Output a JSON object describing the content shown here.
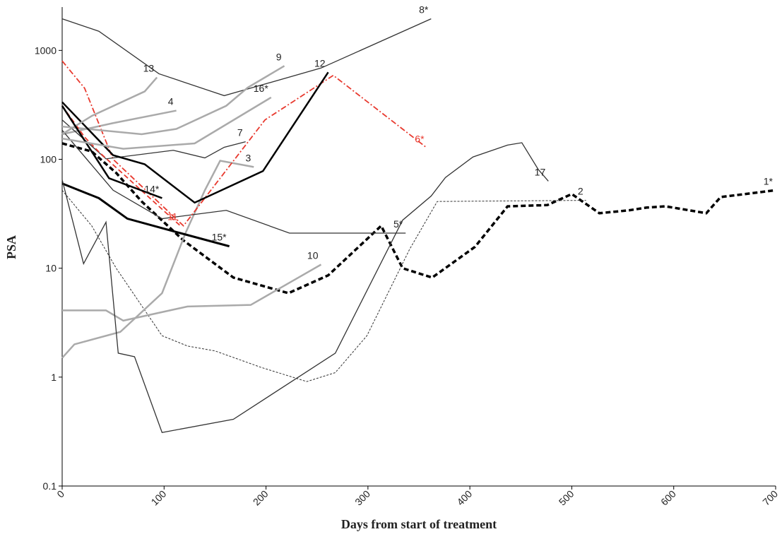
{
  "chart_data": {
    "type": "line",
    "xlabel": "Days from start of treatment",
    "ylabel": "PSA",
    "log_y": true,
    "xlim": [
      0,
      700
    ],
    "xticks": [
      0,
      100,
      200,
      300,
      400,
      500,
      600,
      700
    ],
    "ylim": [
      0.1,
      2500
    ],
    "yticks": [
      0.1,
      1,
      10,
      100,
      1000
    ],
    "series": [
      {
        "name": "1*",
        "color": "#000000",
        "linestyle": "dashed",
        "linewidth": 3.5,
        "x": [
          0,
          29,
          53,
          78,
          119,
          168,
          222,
          261,
          313,
          334,
          363,
          405,
          437,
          476,
          500,
          527,
          556,
          573,
          592,
          632,
          646,
          700
        ],
        "values": [
          140,
          118,
          75,
          41,
          18,
          8.2,
          5.9,
          8.6,
          24.5,
          10,
          8.2,
          15.7,
          37,
          38,
          48,
          32,
          34,
          36,
          37,
          32,
          45,
          52
        ]
      },
      {
        "name": "2",
        "color": "#333333",
        "linestyle": "dotted",
        "linewidth": 1,
        "x": [
          0,
          29,
          53,
          98,
          123,
          150,
          195,
          240,
          268,
          299,
          341,
          368,
          514
        ],
        "values": [
          52,
          24.5,
          10,
          2.4,
          1.93,
          1.74,
          1.23,
          0.91,
          1.1,
          2.4,
          15,
          41,
          42
        ]
      },
      {
        "name": "3",
        "color": "#aaaaaa",
        "linestyle": "solid",
        "linewidth": 2.5,
        "x": [
          0,
          12,
          57,
          98,
          121,
          140,
          155,
          188
        ],
        "values": [
          1.5,
          2,
          2.6,
          5.9,
          21,
          52,
          97,
          85
        ]
      },
      {
        "name": "4",
        "color": "#aaaaaa",
        "linestyle": "solid",
        "linewidth": 2.5,
        "x": [
          0,
          50,
          112
        ],
        "values": [
          170,
          215,
          280
        ]
      },
      {
        "name": "5*",
        "color": "#333333",
        "linestyle": "solid",
        "linewidth": 1.3,
        "x": [
          0,
          50,
          98,
          161,
          223,
          337
        ],
        "values": [
          185,
          52,
          28.5,
          34,
          21,
          21
        ]
      },
      {
        "name": "6*",
        "color": "#e8392e",
        "linestyle": "dashdot",
        "linewidth": 1.8,
        "x": [
          0,
          22,
          50,
          119,
          199,
          266,
          358
        ],
        "values": [
          800,
          450,
          100,
          24.5,
          230,
          590,
          127
        ]
      },
      {
        "name": "7",
        "color": "#333333",
        "linestyle": "solid",
        "linewidth": 1.3,
        "x": [
          0,
          43,
          109,
          140,
          159,
          180
        ],
        "values": [
          230,
          101,
          121,
          103,
          129,
          145
        ]
      },
      {
        "name": "8*",
        "color": "#333333",
        "linestyle": "solid",
        "linewidth": 1.3,
        "x": [
          0,
          36,
          95,
          159,
          254,
          362
        ],
        "values": [
          1950,
          1500,
          610,
          384,
          689,
          1950
        ]
      },
      {
        "name": "9",
        "color": "#aaaaaa",
        "linestyle": "solid",
        "linewidth": 2.5,
        "x": [
          0,
          78,
          112,
          161,
          182,
          218
        ],
        "values": [
          200,
          170,
          190,
          310,
          455,
          720
        ]
      },
      {
        "name": "10",
        "color": "#aaaaaa",
        "linestyle": "solid",
        "linewidth": 2.5,
        "x": [
          0,
          43,
          60,
          123,
          185,
          254
        ],
        "values": [
          4.1,
          4.1,
          3.3,
          4.45,
          4.6,
          10.8
        ]
      },
      {
        "name": "11",
        "color": "#e8392e",
        "linestyle": "dashed",
        "linewidth": 1.8,
        "x": [
          0,
          22,
          36,
          116
        ],
        "values": [
          310,
          160,
          117,
          24.5
        ]
      },
      {
        "name": "12",
        "color": "#000000",
        "linestyle": "solid",
        "linewidth": 2.5,
        "x": [
          0,
          50,
          81,
          130,
          197,
          261
        ],
        "values": [
          335,
          109,
          90,
          40,
          78,
          630
        ]
      },
      {
        "name": "13",
        "color": "#aaaaaa",
        "linestyle": "solid",
        "linewidth": 2.5,
        "x": [
          0,
          29,
          81,
          93
        ],
        "values": [
          170,
          250,
          420,
          565
        ]
      },
      {
        "name": "14*",
        "color": "#000000",
        "linestyle": "solid",
        "linewidth": 2.5,
        "x": [
          0,
          46,
          98
        ],
        "values": [
          310,
          67,
          44
        ]
      },
      {
        "name": "15*",
        "color": "#000000",
        "linestyle": "solid",
        "linewidth": 3,
        "x": [
          0,
          36,
          64,
          116,
          164
        ],
        "values": [
          60,
          44,
          28.5,
          21,
          15.9
        ]
      },
      {
        "name": "16*",
        "color": "#aaaaaa",
        "linestyle": "solid",
        "linewidth": 2.5,
        "x": [
          0,
          60,
          130,
          205
        ],
        "values": [
          155,
          125,
          140,
          370
        ]
      },
      {
        "name": "17",
        "color": "#333333",
        "linestyle": "solid",
        "linewidth": 1.3,
        "x": [
          0,
          21,
          43,
          55,
          71,
          98,
          168,
          268,
          334,
          362,
          376,
          403,
          437,
          451,
          467,
          477
        ],
        "values": [
          65,
          11,
          26.5,
          1.66,
          1.54,
          0.31,
          0.41,
          1.66,
          27.6,
          46,
          68,
          105,
          135,
          142,
          81,
          63
        ]
      }
    ]
  }
}
